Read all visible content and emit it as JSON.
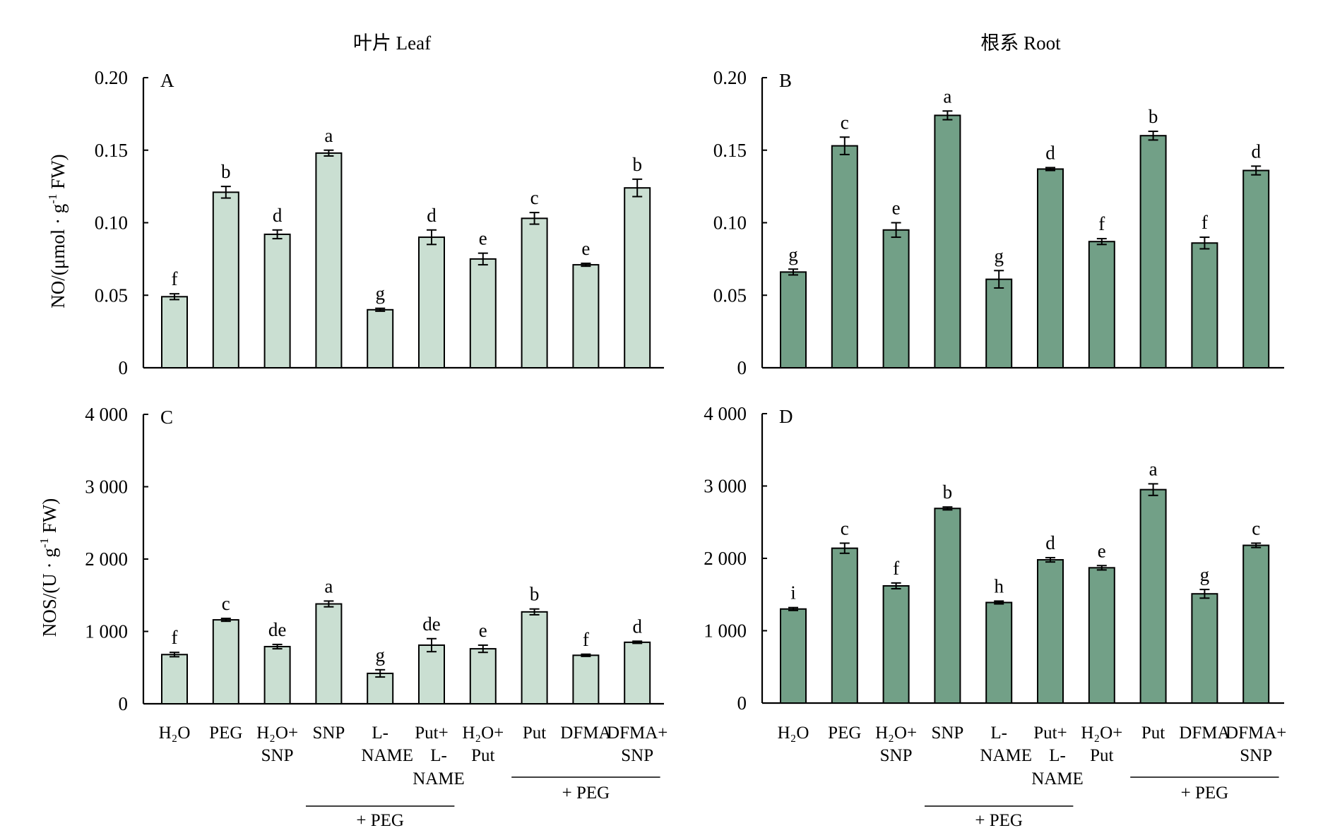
{
  "figure": {
    "col_titles": [
      "叶片 Leaf",
      "根系 Root"
    ]
  },
  "chart_data": [
    {
      "panel": "A",
      "type": "bar",
      "column": "叶片 Leaf",
      "ylabel": "NO/(μmol · g⁻¹ FW)",
      "ylabel_parts": {
        "main": "NO/(μmol · g",
        "sup": "-1",
        "tail": " FW)"
      },
      "ylim": [
        0,
        0.2
      ],
      "yticks": [
        0,
        0.05,
        0.1,
        0.15,
        0.2
      ],
      "ytick_labels": [
        "0",
        "0.05",
        "0.10",
        "0.15",
        "0.20"
      ],
      "categories": [
        "H2O",
        "PEG",
        "H2O+SNP",
        "SNP",
        "L-NAME",
        "Put+L-NAME",
        "H2O+Put",
        "Put",
        "DFMA",
        "DFMA+SNP"
      ],
      "values": [
        0.049,
        0.121,
        0.092,
        0.148,
        0.04,
        0.09,
        0.075,
        0.103,
        0.071,
        0.124
      ],
      "errors": [
        0.002,
        0.004,
        0.003,
        0.002,
        0.001,
        0.005,
        0.004,
        0.004,
        0.001,
        0.006
      ],
      "letters": [
        "f",
        "b",
        "d",
        "a",
        "g",
        "d",
        "e",
        "c",
        "e",
        "b"
      ],
      "color": "#cadfd2"
    },
    {
      "panel": "B",
      "type": "bar",
      "column": "根系 Root",
      "ylabel": "",
      "ylim": [
        0,
        0.2
      ],
      "yticks": [
        0,
        0.05,
        0.1,
        0.15,
        0.2
      ],
      "ytick_labels": [
        "0",
        "0.05",
        "0.10",
        "0.15",
        "0.20"
      ],
      "categories": [
        "H2O",
        "PEG",
        "H2O+SNP",
        "SNP",
        "L-NAME",
        "Put+L-NAME",
        "H2O+Put",
        "Put",
        "DFMA",
        "DFMA+SNP"
      ],
      "values": [
        0.066,
        0.153,
        0.095,
        0.174,
        0.061,
        0.137,
        0.087,
        0.16,
        0.086,
        0.136
      ],
      "errors": [
        0.002,
        0.006,
        0.005,
        0.003,
        0.006,
        0.001,
        0.002,
        0.003,
        0.004,
        0.003
      ],
      "letters": [
        "g",
        "c",
        "e",
        "a",
        "g",
        "d",
        "f",
        "b",
        "f",
        "d"
      ],
      "color": "#72a087"
    },
    {
      "panel": "C",
      "type": "bar",
      "column": "叶片 Leaf",
      "ylabel": "NOS/(U · g⁻¹ FW)",
      "ylabel_parts": {
        "main": "NOS/(U · g",
        "sup": "-1",
        "tail": " FW)"
      },
      "ylim": [
        0,
        4000
      ],
      "yticks": [
        0,
        1000,
        2000,
        3000,
        4000
      ],
      "ytick_labels": [
        "0",
        "1 000",
        "2 000",
        "3 000",
        "4 000"
      ],
      "categories": [
        "H2O",
        "PEG",
        "H2O+SNP",
        "SNP",
        "L-NAME",
        "Put+L-NAME",
        "H2O+Put",
        "Put",
        "DFMA",
        "DFMA+SNP"
      ],
      "values": [
        680,
        1160,
        790,
        1380,
        420,
        810,
        760,
        1270,
        670,
        850
      ],
      "errors": [
        30,
        20,
        30,
        40,
        50,
        90,
        50,
        40,
        15,
        15
      ],
      "letters": [
        "f",
        "c",
        "de",
        "a",
        "g",
        "de",
        "e",
        "b",
        "f",
        "d"
      ],
      "color": "#cadfd2"
    },
    {
      "panel": "D",
      "type": "bar",
      "column": "根系 Root",
      "ylabel": "",
      "ylim": [
        0,
        4000
      ],
      "yticks": [
        0,
        1000,
        2000,
        3000,
        4000
      ],
      "ytick_labels": [
        "0",
        "1 000",
        "2 000",
        "3 000",
        "4 000"
      ],
      "categories": [
        "H2O",
        "PEG",
        "H2O+SNP",
        "SNP",
        "L-NAME",
        "Put+L-NAME",
        "H2O+Put",
        "Put",
        "DFMA",
        "DFMA+SNP"
      ],
      "values": [
        1300,
        2140,
        1620,
        2690,
        1390,
        1980,
        1870,
        2950,
        1510,
        2180
      ],
      "errors": [
        20,
        70,
        40,
        20,
        20,
        30,
        30,
        80,
        60,
        30
      ],
      "letters": [
        "i",
        "c",
        "f",
        "b",
        "h",
        "d",
        "e",
        "a",
        "g",
        "c"
      ],
      "color": "#72a087"
    }
  ],
  "xlabels": [
    {
      "lines": [
        "H₂O"
      ]
    },
    {
      "lines": [
        "PEG"
      ]
    },
    {
      "lines": [
        "H₂O+",
        "SNP"
      ]
    },
    {
      "lines": [
        "SNP"
      ]
    },
    {
      "lines": [
        "L-",
        "NAME"
      ]
    },
    {
      "lines": [
        "Put+",
        "L-",
        "NAME"
      ]
    },
    {
      "lines": [
        "H₂O+",
        "Put"
      ]
    },
    {
      "lines": [
        "Put"
      ]
    },
    {
      "lines": [
        "DFMA"
      ]
    },
    {
      "lines": [
        "DFMA+",
        "SNP"
      ]
    }
  ],
  "groups": [
    {
      "label": "+ PEG",
      "from": 3,
      "to": 5
    },
    {
      "label": "+ PEG",
      "from": 7,
      "to": 9
    }
  ]
}
